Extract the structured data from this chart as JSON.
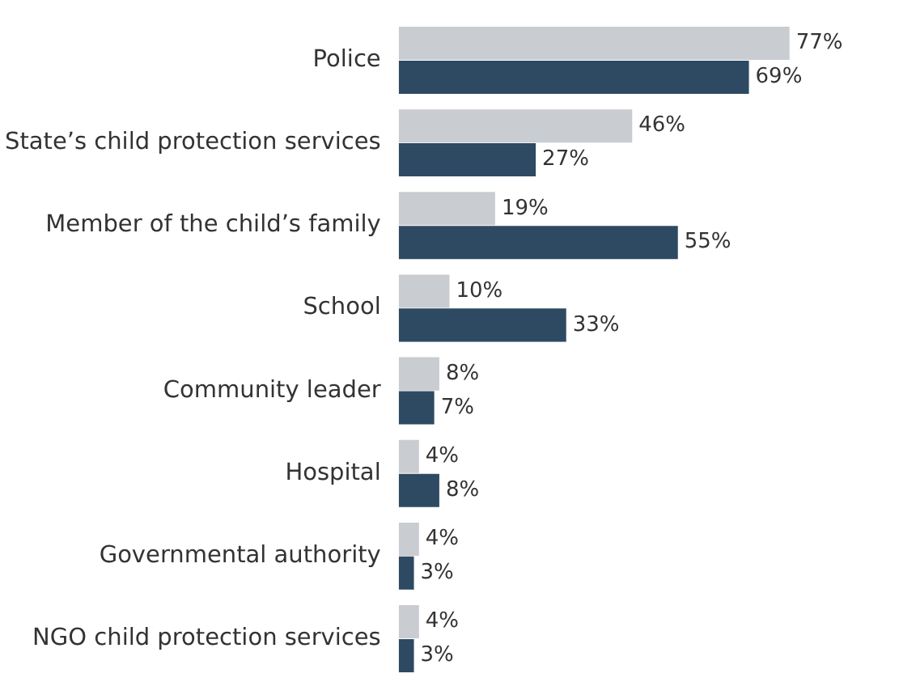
{
  "chart_data": {
    "type": "bar",
    "orientation": "horizontal",
    "legend": false,
    "categories": [
      "Police",
      "State’s child protection services",
      "Member of the child’s family",
      "School",
      "Community leader",
      "Hospital",
      "Governmental authority",
      "NGO child protection services"
    ],
    "series": [
      {
        "color": "#c9ccd1",
        "values": [
          77,
          46,
          19,
          10,
          8,
          4,
          4,
          4
        ],
        "value_labels": [
          "77%",
          "46%",
          "19%",
          "10%",
          "8%",
          "4%",
          "4%",
          "4%"
        ]
      },
      {
        "color": "#2e4a62",
        "values": [
          69,
          27,
          55,
          33,
          7,
          8,
          3,
          3
        ],
        "value_labels": [
          "69%",
          "27%",
          "55%",
          "33%",
          "7%",
          "8%",
          "3%",
          "3%"
        ]
      }
    ]
  }
}
